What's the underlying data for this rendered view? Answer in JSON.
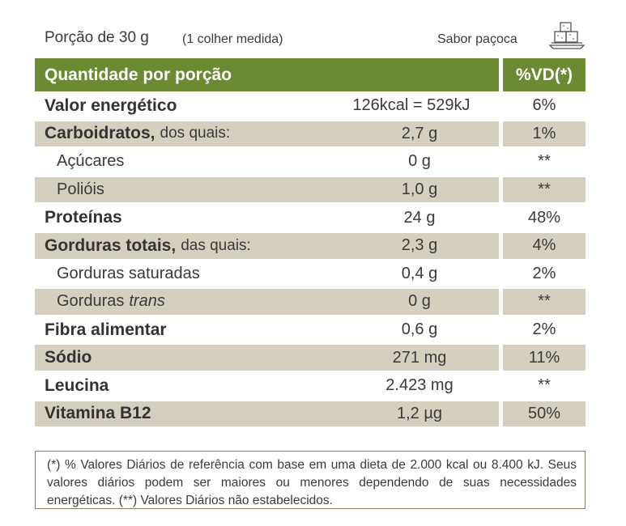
{
  "header": {
    "portion": "Porção de 30 g",
    "portion_note": "(1 colher medida)",
    "flavor": "Sabor paçoca",
    "flavor_icon": "pacoca-sweet-icon"
  },
  "table": {
    "header_main": "Quantidade por porção",
    "header_vd": "%VD(*)",
    "rows": [
      {
        "name": "Valor energético",
        "amount": "126kcal = 529kJ",
        "vd": "6%"
      },
      {
        "name": "Carboidratos,",
        "suffix": "dos quais:",
        "amount": "2,7 g",
        "vd": "1%"
      },
      {
        "name": "Açúcares",
        "amount": "0 g",
        "vd": "**"
      },
      {
        "name": "Polióis",
        "amount": "1,0 g",
        "vd": "**"
      },
      {
        "name": "Proteínas",
        "amount": "24 g",
        "vd": "48%"
      },
      {
        "name": "Gorduras totais,",
        "suffix": "das quais:",
        "amount": "2,3 g",
        "vd": "4%"
      },
      {
        "name": "Gorduras saturadas",
        "amount": "0,4 g",
        "vd": "2%"
      },
      {
        "name": "Gorduras",
        "suffix": "trans",
        "amount": "0 g",
        "vd": "**"
      },
      {
        "name": "Fibra alimentar",
        "amount": "0,6 g",
        "vd": "2%"
      },
      {
        "name": "Sódio",
        "amount": "271 mg",
        "vd": "11%"
      },
      {
        "name": "Leucina",
        "amount": "2.423 mg",
        "vd": "**"
      },
      {
        "name": "Vitamina B12",
        "amount": "1,2 µg",
        "vd": "50%"
      }
    ]
  },
  "footnote": "(*) % Valores Diários de referência com base em uma dieta de 2.000 kcal ou 8.400 kJ. Seus valores diários podem ser maiores ou menores dependendo de suas necessidades energéticas. (**) Valores Diários não estabelecidos.",
  "colors": {
    "header_green": "#6b8a32",
    "row_shade": "#d5cfbf",
    "footnote_border": "#8b7d63"
  }
}
